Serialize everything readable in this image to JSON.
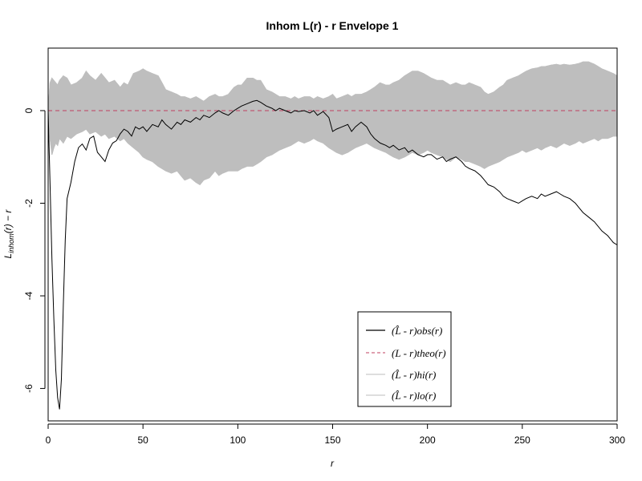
{
  "chart_data": {
    "type": "line",
    "title": "Inhom L(r) - r Envelope 1",
    "xlabel": "r",
    "ylabel": "L_inhom(r) - r",
    "xlim": [
      0,
      300
    ],
    "ylim": [
      -6.7,
      1.35
    ],
    "x_ticks": [
      0,
      50,
      100,
      150,
      200,
      250,
      300
    ],
    "y_ticks": [
      -6,
      -4,
      -2,
      0
    ],
    "grid": false,
    "legend_position": "bottom-right",
    "legend_entries": [
      "(L̂ - r)obs(r)",
      "(L - r)theo(r)",
      "(L̂ - r)hi(r)",
      "(L̂ - r)lo(r)"
    ],
    "colors": {
      "obs": "#000000",
      "theo": "#c04060",
      "envelope": "#bebebe"
    },
    "series": [
      {
        "name": "obs",
        "x": [
          0,
          1,
          2,
          3,
          4,
          5,
          6,
          7,
          8,
          9,
          10,
          12,
          14,
          16,
          18,
          20,
          22,
          24,
          26,
          28,
          30,
          32,
          34,
          36,
          38,
          40,
          42,
          44,
          46,
          48,
          50,
          52,
          55,
          58,
          60,
          62,
          65,
          68,
          70,
          72,
          75,
          78,
          80,
          82,
          85,
          88,
          90,
          92,
          95,
          98,
          100,
          102,
          105,
          108,
          110,
          112,
          115,
          118,
          120,
          122,
          125,
          128,
          130,
          132,
          135,
          138,
          140,
          142,
          145,
          148,
          150,
          152,
          155,
          158,
          160,
          162,
          165,
          168,
          170,
          172,
          175,
          178,
          180,
          182,
          185,
          188,
          190,
          192,
          195,
          198,
          200,
          202,
          205,
          208,
          210,
          212,
          215,
          218,
          220,
          222,
          225,
          228,
          230,
          232,
          235,
          238,
          240,
          242,
          245,
          248,
          250,
          252,
          255,
          258,
          260,
          262,
          265,
          268,
          270,
          272,
          275,
          278,
          280,
          282,
          285,
          288,
          290,
          292,
          295,
          298,
          300
        ],
        "y": [
          0,
          -1.6,
          -3.2,
          -4.5,
          -5.6,
          -6.2,
          -6.45,
          -5.8,
          -4.2,
          -2.8,
          -1.9,
          -1.55,
          -1.1,
          -0.8,
          -0.72,
          -0.85,
          -0.6,
          -0.55,
          -0.9,
          -1.0,
          -1.1,
          -0.85,
          -0.7,
          -0.65,
          -0.5,
          -0.4,
          -0.45,
          -0.55,
          -0.35,
          -0.4,
          -0.35,
          -0.45,
          -0.3,
          -0.35,
          -0.2,
          -0.3,
          -0.4,
          -0.25,
          -0.3,
          -0.2,
          -0.25,
          -0.15,
          -0.2,
          -0.1,
          -0.15,
          -0.05,
          0.0,
          -0.05,
          -0.1,
          0.0,
          0.05,
          0.1,
          0.15,
          0.2,
          0.22,
          0.18,
          0.1,
          0.05,
          0.0,
          0.05,
          0.0,
          -0.05,
          0.0,
          -0.02,
          0.0,
          -0.05,
          0.0,
          -0.1,
          -0.02,
          -0.15,
          -0.45,
          -0.4,
          -0.35,
          -0.3,
          -0.45,
          -0.35,
          -0.25,
          -0.35,
          -0.5,
          -0.6,
          -0.7,
          -0.75,
          -0.8,
          -0.75,
          -0.85,
          -0.8,
          -0.9,
          -0.85,
          -0.95,
          -1.0,
          -0.95,
          -0.95,
          -1.05,
          -1.0,
          -1.1,
          -1.05,
          -1.0,
          -1.1,
          -1.2,
          -1.25,
          -1.3,
          -1.4,
          -1.5,
          -1.6,
          -1.65,
          -1.75,
          -1.85,
          -1.9,
          -1.95,
          -2.0,
          -1.95,
          -1.9,
          -1.85,
          -1.9,
          -1.8,
          -1.85,
          -1.8,
          -1.75,
          -1.8,
          -1.85,
          -1.9,
          -2.0,
          -2.1,
          -2.2,
          -2.3,
          -2.4,
          -2.5,
          -2.6,
          -2.7,
          -2.85,
          -2.9
        ]
      },
      {
        "name": "theo",
        "x": [
          0,
          300
        ],
        "y": [
          0,
          0
        ]
      },
      {
        "name": "hi",
        "x": [
          0,
          1,
          2,
          3,
          4,
          5,
          6,
          8,
          10,
          12,
          15,
          18,
          20,
          22,
          25,
          28,
          30,
          32,
          35,
          38,
          40,
          42,
          45,
          48,
          50,
          52,
          55,
          58,
          60,
          62,
          65,
          68,
          70,
          72,
          75,
          78,
          80,
          82,
          85,
          88,
          90,
          92,
          95,
          98,
          100,
          102,
          105,
          108,
          110,
          112,
          115,
          118,
          120,
          122,
          125,
          128,
          130,
          132,
          135,
          138,
          140,
          142,
          145,
          148,
          150,
          152,
          155,
          158,
          160,
          162,
          165,
          168,
          170,
          172,
          175,
          178,
          180,
          182,
          185,
          188,
          190,
          192,
          195,
          198,
          200,
          202,
          205,
          208,
          210,
          212,
          215,
          218,
          220,
          222,
          225,
          228,
          230,
          232,
          235,
          238,
          240,
          242,
          245,
          248,
          250,
          252,
          255,
          258,
          260,
          262,
          265,
          268,
          270,
          272,
          275,
          278,
          280,
          282,
          285,
          288,
          290,
          292,
          295,
          298,
          300
        ],
        "y": [
          0,
          0.6,
          0.7,
          0.65,
          0.6,
          0.55,
          0.65,
          0.75,
          0.7,
          0.55,
          0.6,
          0.7,
          0.85,
          0.75,
          0.65,
          0.8,
          0.7,
          0.6,
          0.65,
          0.5,
          0.6,
          0.55,
          0.8,
          0.85,
          0.9,
          0.85,
          0.8,
          0.75,
          0.6,
          0.45,
          0.4,
          0.35,
          0.3,
          0.3,
          0.25,
          0.3,
          0.25,
          0.2,
          0.3,
          0.35,
          0.3,
          0.3,
          0.35,
          0.5,
          0.55,
          0.55,
          0.7,
          0.7,
          0.65,
          0.65,
          0.45,
          0.4,
          0.35,
          0.3,
          0.3,
          0.25,
          0.3,
          0.25,
          0.3,
          0.3,
          0.25,
          0.3,
          0.25,
          0.3,
          0.35,
          0.25,
          0.3,
          0.35,
          0.3,
          0.35,
          0.35,
          0.4,
          0.45,
          0.5,
          0.6,
          0.55,
          0.55,
          0.6,
          0.65,
          0.75,
          0.8,
          0.85,
          0.85,
          0.8,
          0.75,
          0.7,
          0.65,
          0.65,
          0.6,
          0.55,
          0.6,
          0.55,
          0.55,
          0.6,
          0.55,
          0.5,
          0.4,
          0.35,
          0.4,
          0.5,
          0.55,
          0.65,
          0.7,
          0.75,
          0.8,
          0.85,
          0.9,
          0.92,
          0.95,
          0.95,
          0.98,
          1.0,
          0.98,
          1.0,
          0.98,
          1.0,
          1.02,
          1.05,
          1.05,
          1.0,
          0.95,
          0.9,
          0.85,
          0.8,
          0.75
        ]
      },
      {
        "name": "lo",
        "x": [
          0,
          1,
          2,
          3,
          4,
          5,
          6,
          8,
          10,
          12,
          15,
          18,
          20,
          22,
          25,
          28,
          30,
          32,
          35,
          38,
          40,
          42,
          45,
          48,
          50,
          52,
          55,
          58,
          60,
          62,
          65,
          68,
          70,
          72,
          75,
          78,
          80,
          82,
          85,
          88,
          90,
          92,
          95,
          98,
          100,
          102,
          105,
          108,
          110,
          112,
          115,
          118,
          120,
          122,
          125,
          128,
          130,
          132,
          135,
          138,
          140,
          142,
          145,
          148,
          150,
          152,
          155,
          158,
          160,
          162,
          165,
          168,
          170,
          172,
          175,
          178,
          180,
          182,
          185,
          188,
          190,
          192,
          195,
          198,
          200,
          202,
          205,
          208,
          210,
          212,
          215,
          218,
          220,
          222,
          225,
          228,
          230,
          232,
          235,
          238,
          240,
          242,
          245,
          248,
          250,
          252,
          255,
          258,
          260,
          262,
          265,
          268,
          270,
          272,
          275,
          278,
          280,
          282,
          285,
          288,
          290,
          292,
          295,
          298,
          300
        ],
        "y": [
          0,
          -0.6,
          -0.95,
          -0.8,
          -0.7,
          -0.75,
          -0.6,
          -0.7,
          -0.55,
          -0.6,
          -0.5,
          -0.45,
          -0.4,
          -0.5,
          -0.45,
          -0.55,
          -0.5,
          -0.6,
          -0.55,
          -0.65,
          -0.6,
          -0.7,
          -0.8,
          -0.9,
          -1.0,
          -1.05,
          -1.1,
          -1.2,
          -1.25,
          -1.3,
          -1.35,
          -1.3,
          -1.4,
          -1.5,
          -1.45,
          -1.55,
          -1.6,
          -1.5,
          -1.45,
          -1.3,
          -1.4,
          -1.35,
          -1.3,
          -1.3,
          -1.3,
          -1.25,
          -1.2,
          -1.2,
          -1.15,
          -1.1,
          -1.0,
          -0.95,
          -0.9,
          -0.85,
          -0.8,
          -0.75,
          -0.7,
          -0.65,
          -0.7,
          -0.65,
          -0.6,
          -0.65,
          -0.7,
          -0.8,
          -0.85,
          -0.9,
          -0.95,
          -0.9,
          -0.85,
          -0.8,
          -0.75,
          -0.7,
          -0.75,
          -0.8,
          -0.85,
          -0.9,
          -0.95,
          -1.0,
          -1.05,
          -1.0,
          -0.95,
          -0.9,
          -0.95,
          -0.9,
          -0.85,
          -0.9,
          -0.95,
          -1.0,
          -1.05,
          -1.1,
          -1.0,
          -1.05,
          -1.1,
          -1.1,
          -1.15,
          -1.2,
          -1.25,
          -1.2,
          -1.15,
          -1.1,
          -1.05,
          -1.0,
          -0.95,
          -0.9,
          -0.85,
          -0.9,
          -0.85,
          -0.8,
          -0.85,
          -0.8,
          -0.75,
          -0.8,
          -0.75,
          -0.7,
          -0.75,
          -0.7,
          -0.65,
          -0.7,
          -0.65,
          -0.6,
          -0.65,
          -0.6,
          -0.6,
          -0.55,
          -0.55
        ]
      }
    ]
  }
}
